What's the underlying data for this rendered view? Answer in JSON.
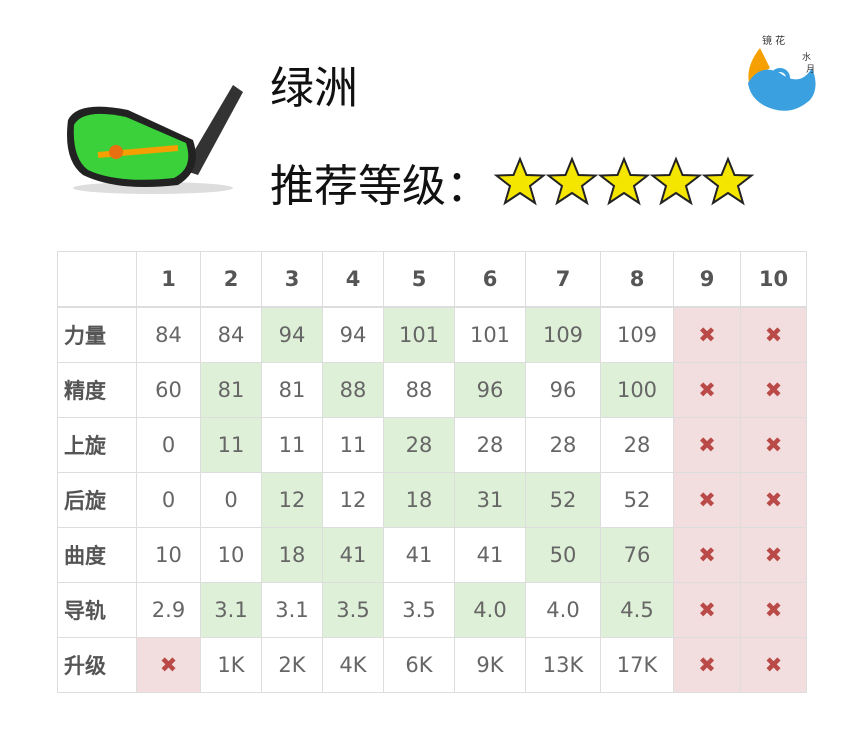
{
  "title": "绿洲",
  "rating": {
    "label": "推荐等级：",
    "stars": 5,
    "max": 5,
    "star_color": "#f5e600"
  },
  "logo_text": "镜花水月",
  "table": {
    "columns": [
      "",
      "1",
      "2",
      "3",
      "4",
      "5",
      "6",
      "7",
      "8",
      "9",
      "10"
    ],
    "rows": [
      {
        "label": "力量",
        "cells": [
          "84",
          "84",
          "94",
          "94",
          "101",
          "101",
          "109",
          "109",
          "✖",
          "✖"
        ],
        "hl": [
          "",
          "",
          "g",
          "",
          "g",
          "",
          "g",
          "",
          "r",
          "r"
        ]
      },
      {
        "label": "精度",
        "cells": [
          "60",
          "81",
          "81",
          "88",
          "88",
          "96",
          "96",
          "100",
          "✖",
          "✖"
        ],
        "hl": [
          "",
          "g",
          "",
          "g",
          "",
          "g",
          "",
          "g",
          "r",
          "r"
        ]
      },
      {
        "label": "上旋",
        "cells": [
          "0",
          "11",
          "11",
          "11",
          "28",
          "28",
          "28",
          "28",
          "✖",
          "✖"
        ],
        "hl": [
          "",
          "g",
          "",
          "",
          "g",
          "",
          "",
          "",
          "r",
          "r"
        ]
      },
      {
        "label": "后旋",
        "cells": [
          "0",
          "0",
          "12",
          "12",
          "18",
          "31",
          "52",
          "52",
          "✖",
          "✖"
        ],
        "hl": [
          "",
          "",
          "g",
          "",
          "g",
          "g",
          "g",
          "",
          "r",
          "r"
        ]
      },
      {
        "label": "曲度",
        "cells": [
          "10",
          "10",
          "18",
          "41",
          "41",
          "41",
          "50",
          "76",
          "✖",
          "✖"
        ],
        "hl": [
          "",
          "",
          "g",
          "g",
          "",
          "",
          "g",
          "g",
          "r",
          "r"
        ]
      },
      {
        "label": "导轨",
        "cells": [
          "2.9",
          "3.1",
          "3.1",
          "3.5",
          "3.5",
          "4.0",
          "4.0",
          "4.5",
          "✖",
          "✖"
        ],
        "hl": [
          "",
          "g",
          "",
          "g",
          "",
          "g",
          "",
          "g",
          "r",
          "r"
        ]
      },
      {
        "label": "升级",
        "cells": [
          "✖",
          "1K",
          "2K",
          "4K",
          "6K",
          "9K",
          "13K",
          "17K",
          "✖",
          "✖"
        ],
        "hl": [
          "r",
          "",
          "",
          "",
          "",
          "",
          "",
          "",
          "r",
          "r"
        ]
      }
    ]
  },
  "colors": {
    "highlight_green": "#dff0d8",
    "locked_red": "#f2dede",
    "x_mark": "#b94a48"
  }
}
